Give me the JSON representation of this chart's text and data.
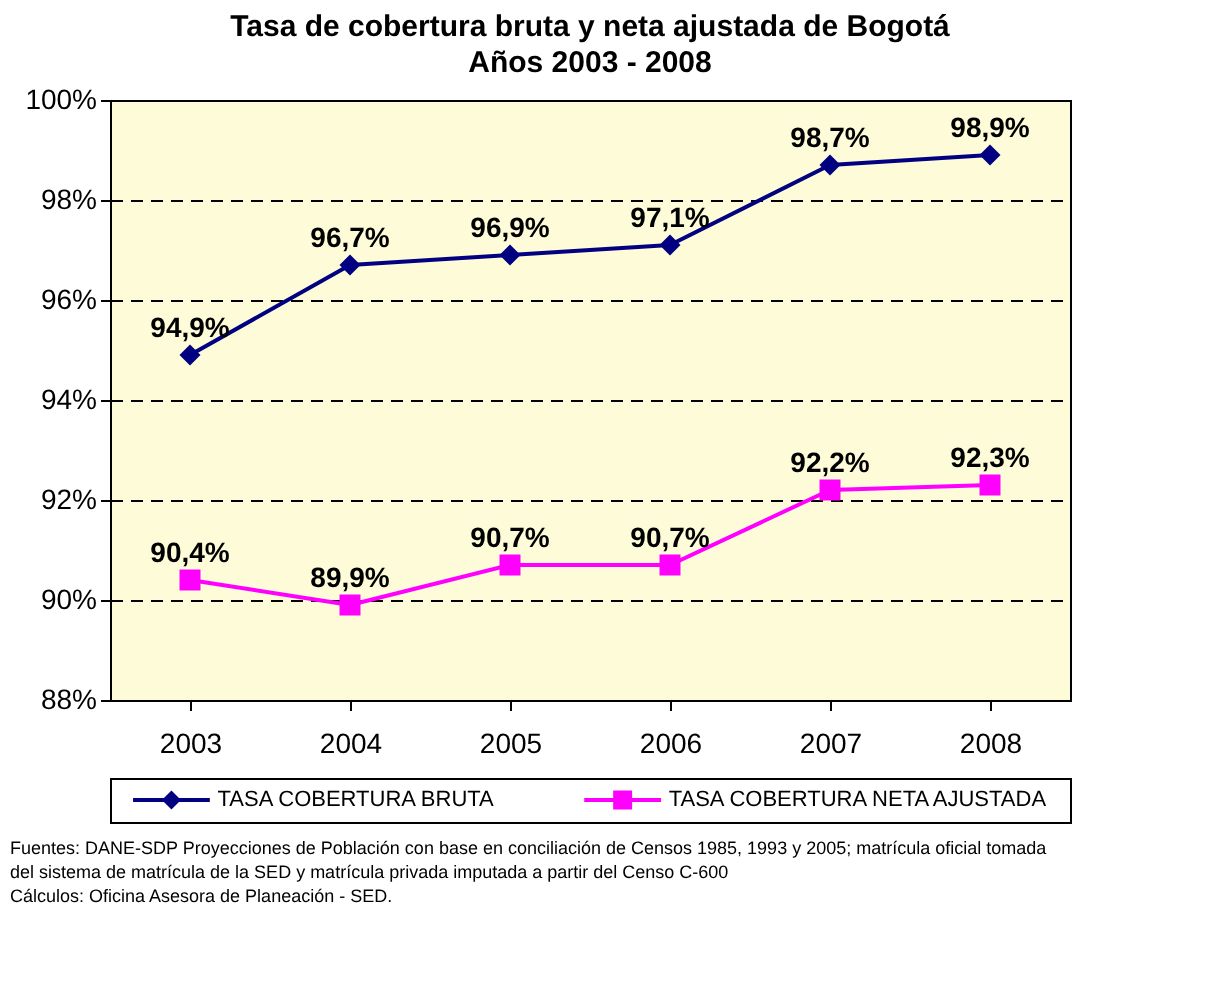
{
  "chart_data": {
    "type": "line",
    "title": "Tasa de cobertura bruta y neta ajustada de Bogotá",
    "subtitle": "Años 2003 - 2008",
    "categories": [
      "2003",
      "2004",
      "2005",
      "2006",
      "2007",
      "2008"
    ],
    "series": [
      {
        "name": "TASA COBERTURA BRUTA",
        "color": "#000080",
        "marker": "diamond",
        "values": [
          94.9,
          96.7,
          96.9,
          97.1,
          98.7,
          98.9
        ],
        "value_labels": [
          "94,9%",
          "96,7%",
          "96,9%",
          "97,1%",
          "98,7%",
          "98,9%"
        ]
      },
      {
        "name": "TASA COBERTURA NETA AJUSTADA",
        "color": "#ff00ff",
        "marker": "square",
        "values": [
          90.4,
          89.9,
          90.7,
          90.7,
          92.2,
          92.3
        ],
        "value_labels": [
          "90,4%",
          "89,9%",
          "90,7%",
          "90,7%",
          "92,2%",
          "92,3%"
        ]
      }
    ],
    "ylim": [
      88,
      100
    ],
    "yticks": [
      {
        "value": 88,
        "label": "88%"
      },
      {
        "value": 90,
        "label": "90%"
      },
      {
        "value": 92,
        "label": "92%"
      },
      {
        "value": 94,
        "label": "94%"
      },
      {
        "value": 96,
        "label": "96%"
      },
      {
        "value": 98,
        "label": "98%"
      },
      {
        "value": 100,
        "label": "100%"
      }
    ],
    "grid": "y",
    "legend": "bottom",
    "line_style": "solid",
    "annotations": [
      "Fuentes: DANE-SDP Proyecciones de Población con base en conciliación de Censos 1985, 1993 y 2005; matrícula oficial tomada del sistema de matrícula de la SED y matrícula privada imputada a partir del Censo C-600",
      "Cálculos: Oficina Asesora de Planeación - SED."
    ]
  }
}
